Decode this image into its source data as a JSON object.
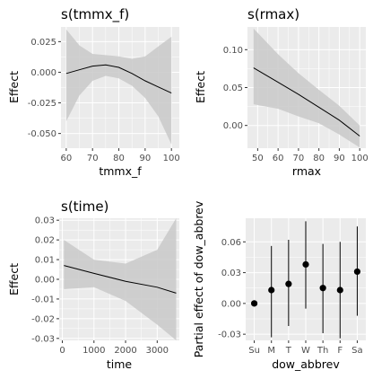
{
  "theme": {
    "panel_bg": "#ebebeb",
    "grid_major": "#ffffff",
    "ribbon": "#c9c9c9",
    "line": "#000000",
    "tick_text": "#4d4d4d"
  },
  "chart_data": [
    {
      "type": "line",
      "title": "s(tmmx_f)",
      "xlabel": "tmmx_f",
      "ylabel": "Effect",
      "xlim": [
        58,
        103
      ],
      "ylim": [
        -0.062,
        0.037
      ],
      "xticks": [
        60,
        70,
        80,
        90,
        100
      ],
      "yticks": [
        0.025,
        0.0,
        -0.025,
        -0.05
      ],
      "ytick_labels": [
        "0.025",
        "0.000",
        "-0.025",
        "-0.050"
      ],
      "x": [
        60,
        65,
        70,
        75,
        80,
        85,
        90,
        95,
        100
      ],
      "fit": [
        -0.001,
        0.002,
        0.005,
        0.006,
        0.004,
        -0.001,
        -0.007,
        -0.012,
        -0.017
      ],
      "lower": [
        -0.04,
        -0.019,
        -0.007,
        -0.003,
        -0.005,
        -0.011,
        -0.021,
        -0.036,
        -0.059
      ],
      "upper": [
        0.035,
        0.022,
        0.015,
        0.014,
        0.013,
        0.011,
        0.013,
        0.021,
        0.029
      ],
      "grid": true
    },
    {
      "type": "line",
      "title": "s(rmax)",
      "xlabel": "rmax",
      "ylabel": "Effect",
      "xlim": [
        45,
        103
      ],
      "ylim": [
        -0.03,
        0.13
      ],
      "xticks": [
        50,
        60,
        70,
        80,
        90,
        100
      ],
      "yticks": [
        0.1,
        0.05,
        0.0
      ],
      "ytick_labels": [
        "0.10",
        "0.05",
        "0.00"
      ],
      "x": [
        48,
        60,
        70,
        80,
        90,
        100
      ],
      "fit": [
        0.076,
        0.057,
        0.041,
        0.024,
        0.007,
        -0.014
      ],
      "lower": [
        0.028,
        0.022,
        0.012,
        0.003,
        -0.012,
        -0.029
      ],
      "upper": [
        0.128,
        0.094,
        0.069,
        0.047,
        0.026,
        0.0
      ],
      "grid": true
    },
    {
      "type": "line",
      "title": "s(time)",
      "xlabel": "time",
      "ylabel": "Effect",
      "xlim": [
        -100,
        3700
      ],
      "ylim": [
        -0.031,
        0.031
      ],
      "xticks": [
        0,
        1000,
        2000,
        3000
      ],
      "yticks": [
        0.03,
        0.02,
        0.01,
        0.0,
        -0.01,
        -0.02,
        -0.03
      ],
      "ytick_labels": [
        "0.03",
        "0.02",
        "0.01",
        "0.00",
        "-0.01",
        "-0.02",
        "-0.03"
      ],
      "x": [
        50,
        1000,
        2000,
        3000,
        3600
      ],
      "fit": [
        0.007,
        0.003,
        -0.001,
        -0.004,
        -0.007
      ],
      "lower": [
        -0.005,
        -0.004,
        -0.011,
        -0.023,
        -0.031
      ],
      "upper": [
        0.02,
        0.01,
        0.008,
        0.015,
        0.031
      ],
      "grid": true
    },
    {
      "type": "scatter",
      "title": "",
      "xlabel": "dow_abbrev",
      "ylabel": "Partial effect of dow_abbrev",
      "categories": [
        "Su",
        "M",
        "T",
        "W",
        "Th",
        "F",
        "Sa"
      ],
      "ylim": [
        -0.036,
        0.083
      ],
      "yticks": [
        0.06,
        0.03,
        0.0,
        -0.03
      ],
      "ytick_labels": [
        "0.06",
        "0.03",
        "0.00",
        "-0.03"
      ],
      "values": [
        0.0,
        0.013,
        0.019,
        0.038,
        0.015,
        0.013,
        0.031
      ],
      "lower": [
        0.0,
        -0.033,
        -0.022,
        -0.005,
        -0.029,
        -0.034,
        -0.012
      ],
      "upper": [
        0.0,
        0.056,
        0.062,
        0.08,
        0.058,
        0.06,
        0.075
      ],
      "grid": true
    }
  ]
}
